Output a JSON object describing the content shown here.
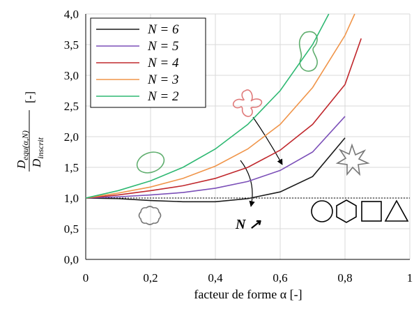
{
  "chart_data": {
    "type": "line",
    "xlabel": "facteur de forme α [-]",
    "ylabel": {
      "num": "D",
      "num_sub": "equ(α,N)",
      "den": "D",
      "den_sub": "inscrit",
      "unit": "[-]"
    },
    "annotation": "N ↗",
    "xlim": [
      0,
      1
    ],
    "ylim": [
      0,
      4
    ],
    "xticks": [
      0,
      {
        "value": 0.2,
        "label": "0,2"
      },
      {
        "value": 0.4,
        "label": "0,4"
      },
      {
        "value": 0.6,
        "label": "0,6"
      },
      {
        "value": 0.8,
        "label": "0,8"
      },
      1
    ],
    "yticks": [
      {
        "value": 0,
        "label": "0,0"
      },
      {
        "value": 0.5,
        "label": "0,5"
      },
      {
        "value": 1,
        "label": "1,0"
      },
      {
        "value": 1.5,
        "label": "1,5"
      },
      {
        "value": 2,
        "label": "2,0"
      },
      {
        "value": 2.5,
        "label": "2,5"
      },
      {
        "value": 3,
        "label": "3,0"
      },
      {
        "value": 3.5,
        "label": "3,5"
      },
      {
        "value": 4,
        "label": "4,0"
      }
    ],
    "grid": true,
    "legend": "top-left",
    "series": [
      {
        "name": "N = 6",
        "color": "#1a1a1a",
        "x": [
          0,
          0.1,
          0.2,
          0.3,
          0.4,
          0.5,
          0.6,
          0.7,
          0.8
        ],
        "values": [
          1.0,
          0.99,
          0.96,
          0.94,
          0.94,
          0.99,
          1.1,
          1.35,
          1.98
        ]
      },
      {
        "name": "N = 5",
        "color": "#7b4fb8",
        "x": [
          0,
          0.1,
          0.2,
          0.3,
          0.4,
          0.5,
          0.6,
          0.7,
          0.8
        ],
        "values": [
          1.0,
          1.02,
          1.05,
          1.09,
          1.16,
          1.27,
          1.45,
          1.75,
          2.33
        ]
      },
      {
        "name": "N = 4",
        "color": "#c0282d",
        "x": [
          0,
          0.1,
          0.2,
          0.3,
          0.4,
          0.5,
          0.6,
          0.7,
          0.8,
          0.85
        ],
        "values": [
          1.0,
          1.05,
          1.12,
          1.2,
          1.32,
          1.5,
          1.78,
          2.2,
          2.85,
          3.6
        ]
      },
      {
        "name": "N = 3",
        "color": "#f0954a",
        "x": [
          0,
          0.1,
          0.2,
          0.3,
          0.4,
          0.5,
          0.6,
          0.7,
          0.8,
          0.83
        ],
        "values": [
          1.0,
          1.08,
          1.18,
          1.32,
          1.52,
          1.8,
          2.2,
          2.8,
          3.65,
          4.0
        ]
      },
      {
        "name": "N = 2",
        "color": "#2eb872",
        "x": [
          0,
          0.1,
          0.2,
          0.3,
          0.4,
          0.5,
          0.6,
          0.7,
          0.75
        ],
        "values": [
          1.0,
          1.12,
          1.28,
          1.5,
          1.8,
          2.2,
          2.75,
          3.5,
          4.0
        ]
      }
    ]
  }
}
